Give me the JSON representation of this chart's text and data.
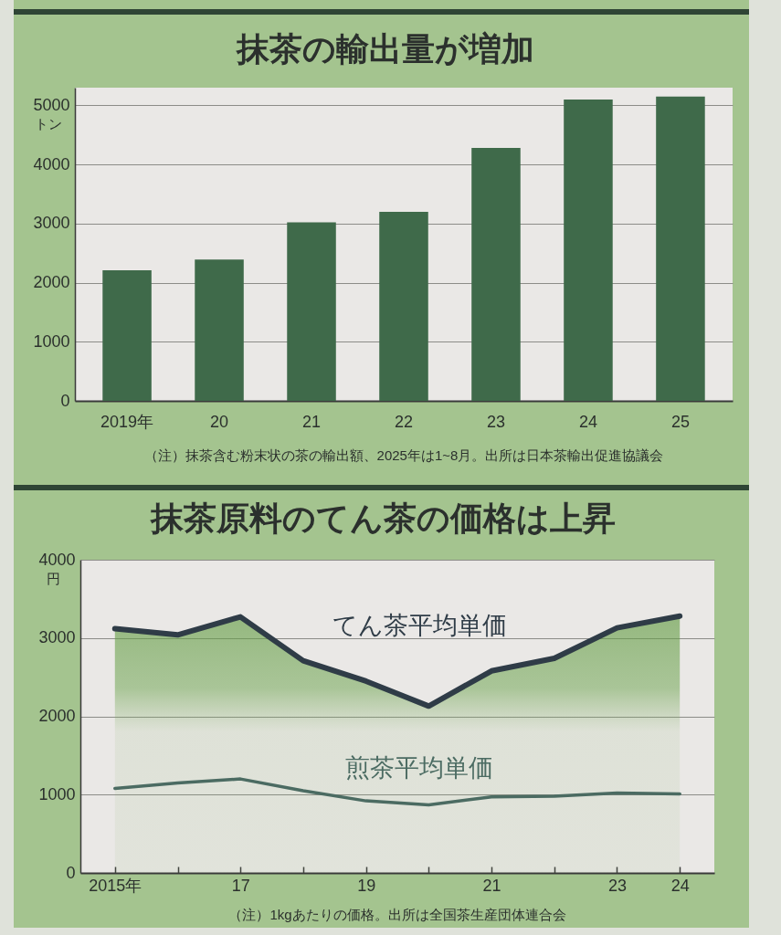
{
  "chart_data": [
    {
      "type": "bar",
      "title": "抹茶の輸出量が増加",
      "ylabel": "トン",
      "categories": [
        "2019年",
        "20",
        "21",
        "22",
        "23",
        "24",
        "25"
      ],
      "values": [
        2210,
        2390,
        3020,
        3200,
        4280,
        5100,
        5150
      ],
      "color": "#3f6a4a",
      "ylim": [
        0,
        5300
      ],
      "yticks": [
        0,
        1000,
        2000,
        3000,
        4000,
        5000
      ],
      "grid": "y",
      "annotations": [
        "（注）抹茶含む粉末状の茶の輸出額、2025年は1~8月。出所は日本茶輸出促進協議会"
      ]
    },
    {
      "type": "line",
      "title": "抹茶原料のてん茶の価格は上昇",
      "ylabel": "円",
      "categories": [
        "2015年",
        null,
        "17",
        null,
        "19",
        null,
        "21",
        null,
        "23",
        "24"
      ],
      "series": [
        {
          "name": "てん茶平均単価",
          "type": "area",
          "color": "#2f3c47",
          "values": [
            3120,
            3040,
            3270,
            2710,
            2450,
            2130,
            2580,
            2740,
            3130,
            3280
          ]
        },
        {
          "name": "煎茶平均単価",
          "color": "#4b6b62",
          "values": [
            1080,
            1150,
            1200,
            1050,
            920,
            870,
            970,
            980,
            1020,
            1010
          ]
        }
      ],
      "ylim": [
        0,
        4000
      ],
      "yticks": [
        0,
        1000,
        2000,
        3000,
        4000
      ],
      "grid": "y",
      "annotations": [
        "（注）1kgあたりの価格。出所は全国茶生産団体連合会"
      ]
    }
  ]
}
